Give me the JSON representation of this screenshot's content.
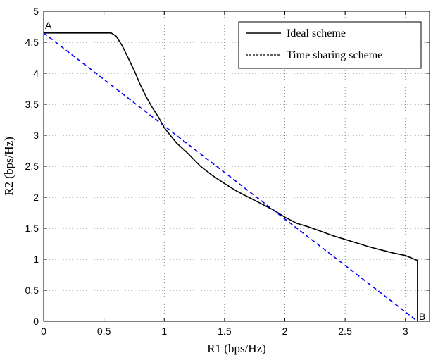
{
  "chart_data": {
    "type": "line",
    "title": "",
    "xlabel": "R1 (bps/Hz)",
    "ylabel": "R2 (bps/Hz)",
    "xlim": [
      0,
      3.2
    ],
    "ylim": [
      0,
      5
    ],
    "xticks": [
      0,
      0.5,
      1,
      1.5,
      2,
      2.5,
      3
    ],
    "yticks": [
      0,
      0.5,
      1,
      1.5,
      2,
      2.5,
      3,
      3.5,
      4,
      4.5,
      5
    ],
    "grid": true,
    "legend_position": "top-right",
    "series": [
      {
        "name": "Ideal scheme",
        "color": "#000000",
        "style": "solid",
        "points": [
          [
            0,
            4.65
          ],
          [
            0.3,
            4.65
          ],
          [
            0.56,
            4.65
          ],
          [
            0.6,
            4.6
          ],
          [
            0.65,
            4.45
          ],
          [
            0.7,
            4.25
          ],
          [
            0.75,
            4.05
          ],
          [
            0.8,
            3.82
          ],
          [
            0.85,
            3.62
          ],
          [
            0.9,
            3.45
          ],
          [
            0.95,
            3.3
          ],
          [
            1.0,
            3.12
          ],
          [
            1.05,
            3.0
          ],
          [
            1.1,
            2.88
          ],
          [
            1.2,
            2.7
          ],
          [
            1.3,
            2.5
          ],
          [
            1.4,
            2.35
          ],
          [
            1.5,
            2.22
          ],
          [
            1.6,
            2.1
          ],
          [
            1.7,
            2.0
          ],
          [
            1.8,
            1.9
          ],
          [
            1.9,
            1.8
          ],
          [
            2.0,
            1.68
          ],
          [
            2.1,
            1.58
          ],
          [
            2.2,
            1.52
          ],
          [
            2.3,
            1.45
          ],
          [
            2.4,
            1.38
          ],
          [
            2.5,
            1.32
          ],
          [
            2.6,
            1.26
          ],
          [
            2.7,
            1.2
          ],
          [
            2.8,
            1.15
          ],
          [
            2.9,
            1.1
          ],
          [
            3.0,
            1.06
          ],
          [
            3.05,
            1.02
          ],
          [
            3.1,
            0.98
          ],
          [
            3.1,
            0.0
          ]
        ]
      },
      {
        "name": "Time sharing scheme",
        "color": "#0000ff",
        "legend_color": "#000000",
        "style": "dashed",
        "points": [
          [
            0,
            4.65
          ],
          [
            3.1,
            0.0
          ]
        ]
      }
    ],
    "annotations": [
      {
        "text": "A",
        "x": 0,
        "y": 4.65
      },
      {
        "text": "B",
        "x": 3.1,
        "y": 0
      }
    ]
  }
}
